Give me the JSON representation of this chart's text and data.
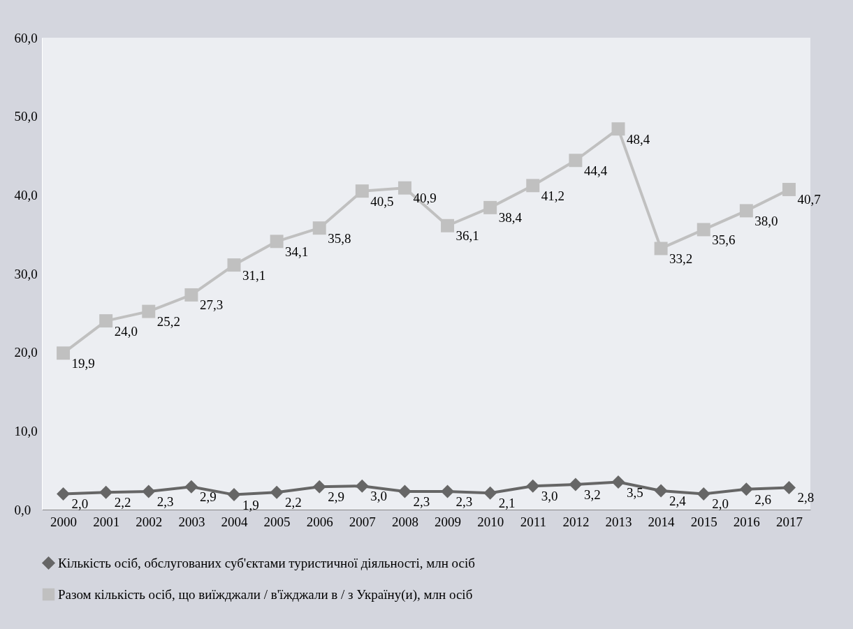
{
  "chart_data": {
    "type": "line",
    "categories": [
      "2000",
      "2001",
      "2002",
      "2003",
      "2004",
      "2005",
      "2006",
      "2007",
      "2008",
      "2009",
      "2010",
      "2011",
      "2012",
      "2013",
      "2014",
      "2015",
      "2016",
      "2017"
    ],
    "series": [
      {
        "name": "Кількість осіб, обслугованих суб'єктами туристичної діяльності, млн осіб",
        "color": "#666666",
        "marker": "diamond",
        "values": [
          2.0,
          2.2,
          2.3,
          2.9,
          1.9,
          2.2,
          2.9,
          3.0,
          2.3,
          2.3,
          2.1,
          3.0,
          3.2,
          3.5,
          2.4,
          2.0,
          2.6,
          2.8
        ],
        "value_labels": [
          "2,0",
          "2,2",
          "2,3",
          "2,9",
          "1,9",
          "2,2",
          "2,9",
          "3,0",
          "2,3",
          "2,3",
          "2,1",
          "3,0",
          "3,2",
          "3,5",
          "2,4",
          "2,0",
          "2,6",
          "2,8"
        ]
      },
      {
        "name": "Разом кількість осіб, що виїжджали / в'їжджали  в / з Україну(и), млн осіб",
        "color": "#c0c0c0",
        "marker": "square",
        "values": [
          19.9,
          24.0,
          25.2,
          27.3,
          31.1,
          34.1,
          35.8,
          40.5,
          40.9,
          36.1,
          38.4,
          41.2,
          44.4,
          48.4,
          33.2,
          35.6,
          38.0,
          40.7
        ],
        "value_labels": [
          "19,9",
          "24,0",
          "25,2",
          "27,3",
          "31,1",
          "34,1",
          "35,8",
          "40,5",
          "40,9",
          "36,1",
          "38,4",
          "41,2",
          "44,4",
          "48,4",
          "33,2",
          "35,6",
          "38,0",
          "40,7"
        ]
      }
    ],
    "ylim": [
      0,
      60
    ],
    "yticks": [
      {
        "value": 0,
        "label": "0,0"
      },
      {
        "value": 10,
        "label": "10,0"
      },
      {
        "value": 20,
        "label": "20,0"
      },
      {
        "value": 30,
        "label": "30,0"
      },
      {
        "value": 40,
        "label": "40,0"
      },
      {
        "value": 50,
        "label": "50,0"
      },
      {
        "value": 60,
        "label": "60,0"
      }
    ],
    "grid": false,
    "legend": "bottom"
  }
}
